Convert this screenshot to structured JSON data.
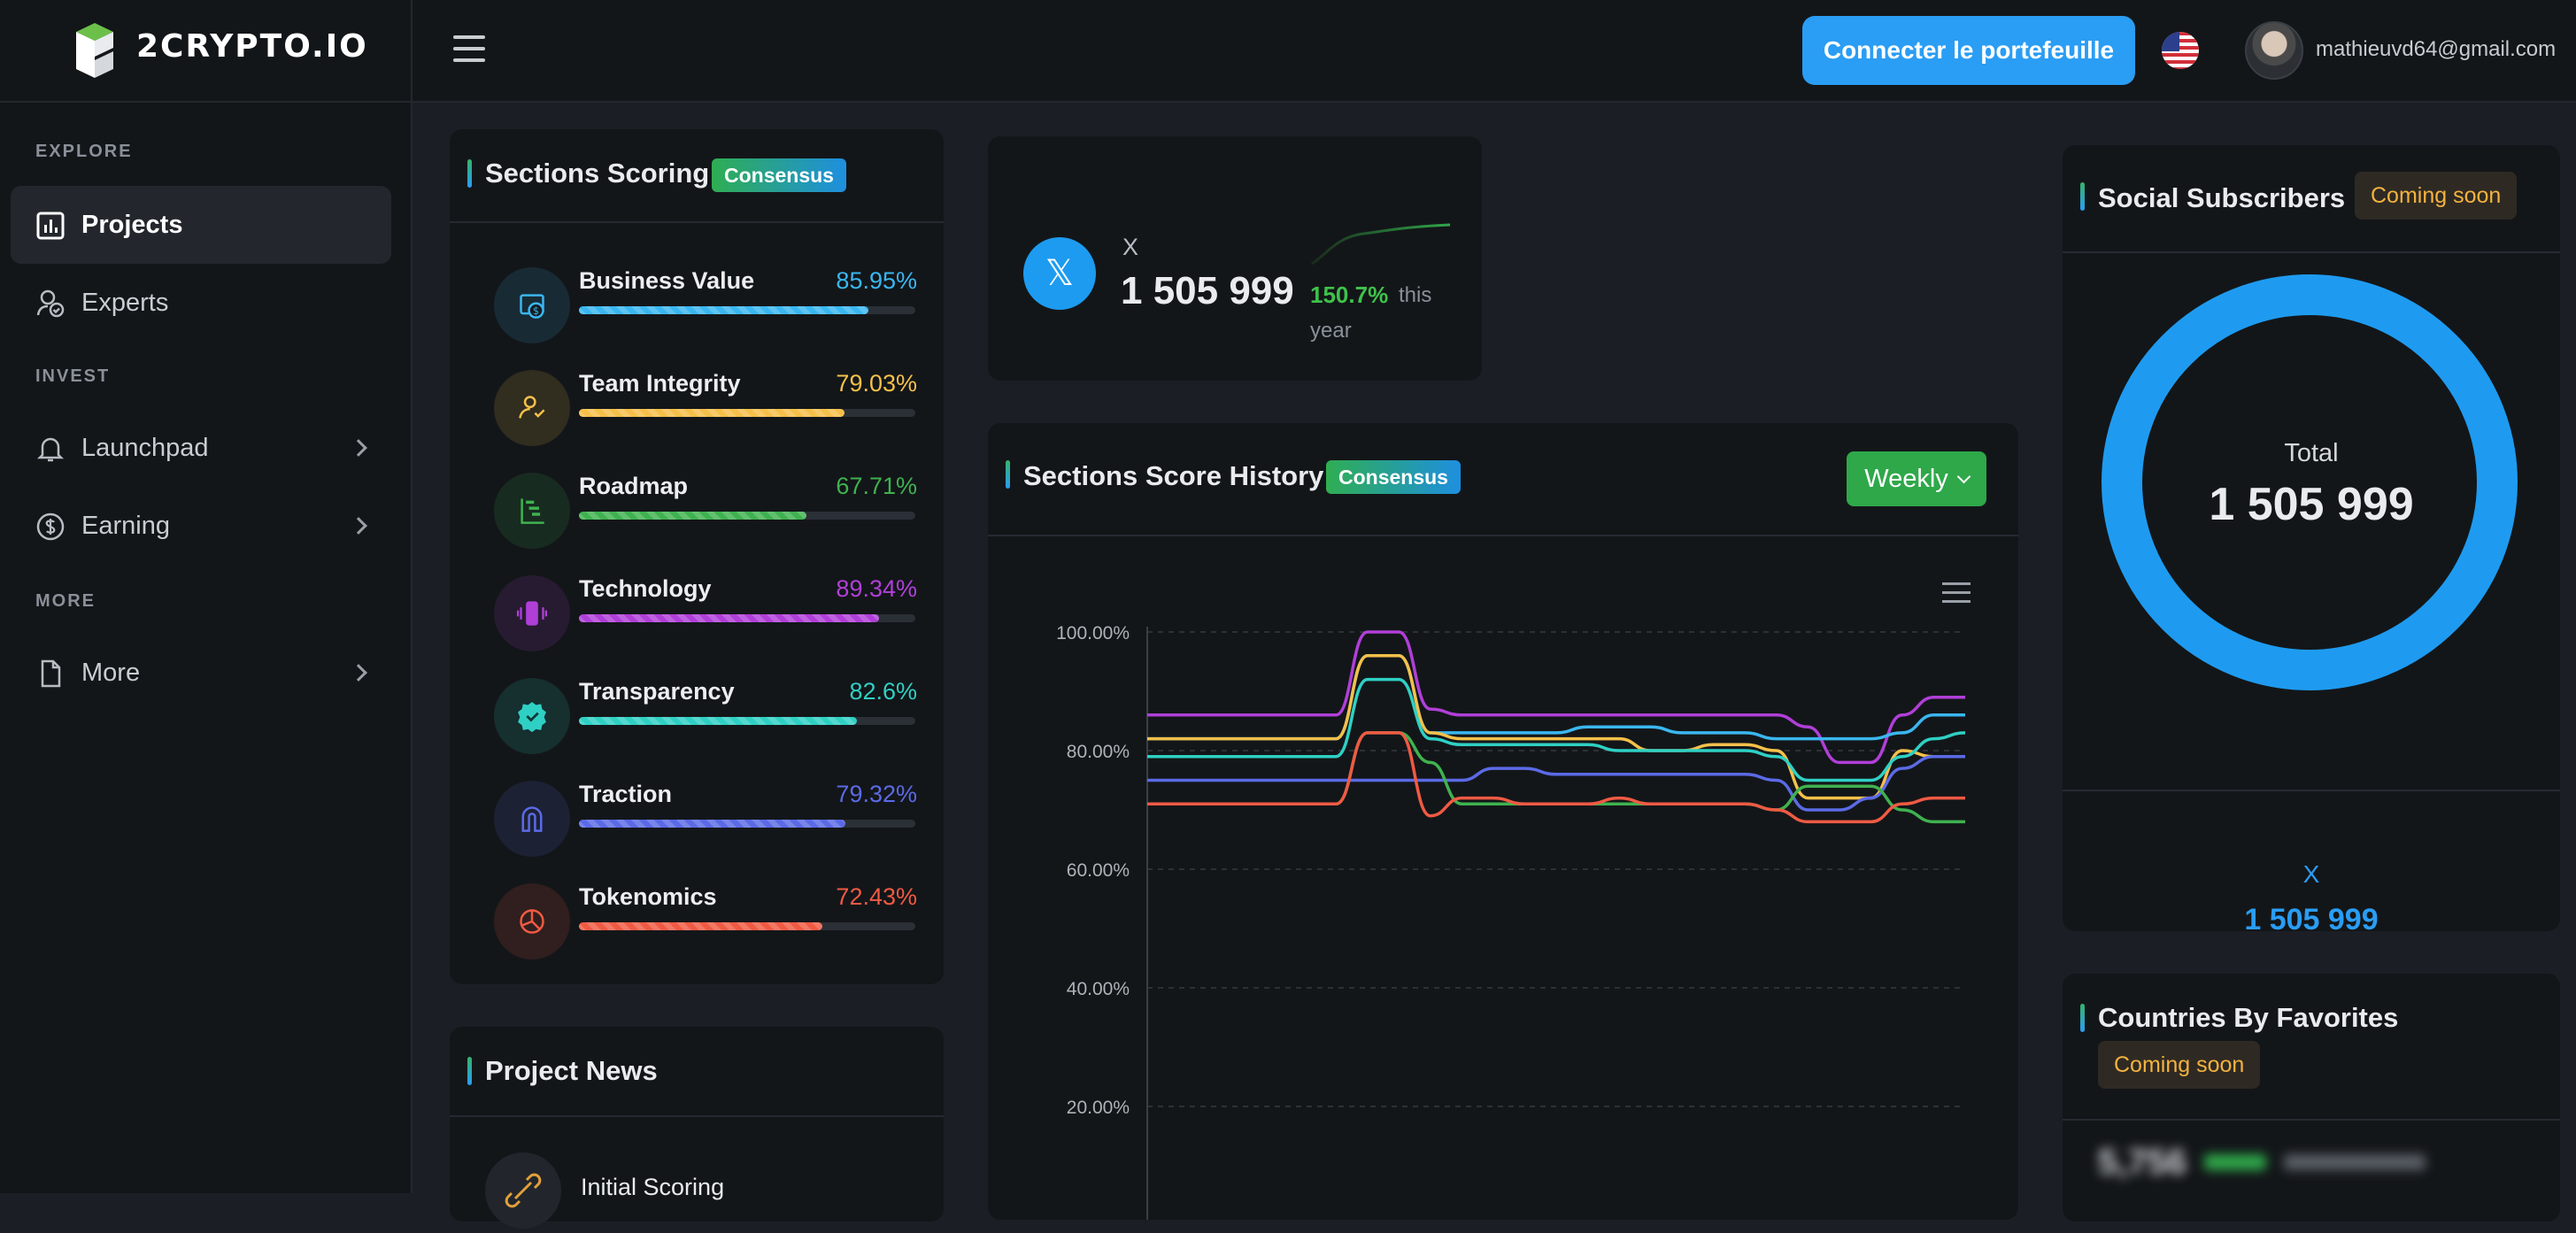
{
  "app": {
    "logo_text": "2CRYPTO.IO"
  },
  "header": {
    "connect_label": "Connecter le portefeuille",
    "user_email": "mathieuvd64@gmail.com"
  },
  "sidebar": {
    "sections": [
      "EXPLORE",
      "INVEST",
      "MORE"
    ],
    "items": [
      {
        "label": "Projects",
        "icon": "bar-chart-icon",
        "active": true
      },
      {
        "label": "Experts",
        "icon": "user-check-icon"
      },
      {
        "label": "Launchpad",
        "icon": "bell-icon"
      },
      {
        "label": "Earning",
        "icon": "dollar-icon"
      },
      {
        "label": "More",
        "icon": "document-icon"
      }
    ]
  },
  "scoring": {
    "title": "Sections Scoring",
    "badge": "Consensus",
    "rows": [
      {
        "name": "Business Value",
        "value": "85.95%",
        "pct": 85.95,
        "color": "#3ab7f0",
        "icon": "money-screen-icon"
      },
      {
        "name": "Team Integrity",
        "value": "79.03%",
        "pct": 79.03,
        "color": "#f5c04a",
        "icon": "user-check-icon"
      },
      {
        "name": "Roadmap",
        "value": "67.71%",
        "pct": 67.71,
        "color": "#3fb24f",
        "icon": "roadmap-icon"
      },
      {
        "name": "Technology",
        "value": "89.34%",
        "pct": 89.34,
        "color": "#b03fd8",
        "icon": "phone-vibrate-icon"
      },
      {
        "name": "Transparency",
        "value": "82.6%",
        "pct": 82.6,
        "color": "#2fd0c4",
        "icon": "verified-badge-icon"
      },
      {
        "name": "Traction",
        "value": "79.32%",
        "pct": 79.32,
        "color": "#5b6ae6",
        "icon": "magnet-icon"
      },
      {
        "name": "Tokenomics",
        "value": "72.43%",
        "pct": 72.43,
        "color": "#f05a43",
        "icon": "pie-chart-icon"
      }
    ]
  },
  "news": {
    "title": "Project News",
    "first_item": "Initial Scoring"
  },
  "x_stat": {
    "label": "X",
    "value": "1 505 999",
    "growth": "150.7%",
    "growth_suffix_1": "this",
    "growth_suffix_2": "year"
  },
  "history": {
    "title": "Sections Score History",
    "badge": "Consensus",
    "period": "Weekly"
  },
  "chart_data": {
    "type": "line",
    "title": "",
    "ylim": [
      20,
      100
    ],
    "yticks": [
      "100.00%",
      "80.00%",
      "60.00%",
      "40.00%",
      "20.00%"
    ],
    "x": [
      1,
      2,
      3,
      4,
      5,
      6,
      7,
      8,
      9,
      10,
      11,
      12,
      13,
      14,
      15,
      16,
      17,
      18,
      19,
      20,
      21,
      22,
      23,
      24,
      25,
      26,
      27
    ],
    "series": [
      {
        "color": "#b03fd8",
        "values": [
          86,
          86,
          86,
          86,
          86,
          86,
          86,
          100,
          100,
          87,
          86,
          86,
          86,
          86,
          86,
          86,
          86,
          86,
          86,
          86,
          86,
          84,
          78,
          78,
          86,
          89,
          89
        ]
      },
      {
        "color": "#3ab7f0",
        "values": [
          82,
          82,
          82,
          82,
          82,
          82,
          82,
          96,
          96,
          83,
          83,
          83,
          83,
          83,
          84,
          84,
          84,
          83,
          83,
          83,
          82,
          82,
          82,
          82,
          83,
          86,
          86
        ]
      },
      {
        "color": "#f5c04a",
        "values": [
          82,
          82,
          82,
          82,
          82,
          82,
          82,
          96,
          96,
          83,
          82,
          82,
          82,
          82,
          82,
          82,
          80,
          80,
          81,
          81,
          80,
          72,
          72,
          72,
          80,
          79,
          79
        ]
      },
      {
        "color": "#2fd0c4",
        "values": [
          79,
          79,
          79,
          79,
          79,
          79,
          79,
          92,
          92,
          82,
          81,
          81,
          81,
          81,
          81,
          80,
          80,
          80,
          80,
          80,
          79,
          75,
          75,
          75,
          79,
          82,
          83
        ]
      },
      {
        "color": "#5b6ae6",
        "values": [
          75,
          75,
          75,
          75,
          75,
          75,
          75,
          75,
          75,
          75,
          75,
          77,
          77,
          76,
          76,
          76,
          76,
          76,
          76,
          76,
          75,
          70,
          70,
          72,
          77,
          79,
          79
        ]
      },
      {
        "color": "#3fb24f",
        "values": [
          71,
          71,
          71,
          71,
          71,
          71,
          71,
          83,
          83,
          78,
          71,
          71,
          71,
          71,
          71,
          71,
          71,
          71,
          71,
          71,
          70,
          74,
          74,
          74,
          70,
          68,
          68
        ]
      },
      {
        "color": "#f05a43",
        "values": [
          71,
          71,
          71,
          71,
          71,
          71,
          71,
          83,
          83,
          69,
          72,
          72,
          71,
          71,
          71,
          72,
          71,
          71,
          71,
          71,
          70,
          68,
          68,
          68,
          71,
          72,
          72
        ]
      }
    ]
  },
  "social": {
    "title": "Social Subscribers",
    "badge": "Coming soon",
    "total_label": "Total",
    "total_value": "1 505 999",
    "x_label": "X",
    "x_value": "1 505 999",
    "donut_color": "#1e9bf0"
  },
  "countries": {
    "title": "Countries By Favorites",
    "badge": "Coming soon",
    "blurred_value": "5,756"
  }
}
